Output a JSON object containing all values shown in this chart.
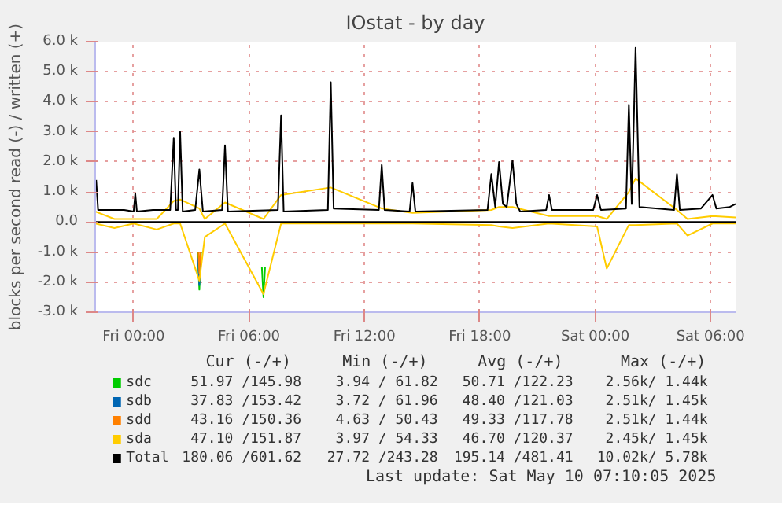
{
  "chart_data": {
    "type": "line",
    "title": "IOstat - by day",
    "ylabel": "blocks per second read (-) / written (+)",
    "xlim": [
      "2025-05-08T22:00",
      "2025-05-10T07:18"
    ],
    "ylim": [
      -3000,
      6000
    ],
    "xticks": [
      {
        "value": "2025-05-09T00:00",
        "label": "Fri 00:00"
      },
      {
        "value": "2025-05-09T06:00",
        "label": "Fri 06:00"
      },
      {
        "value": "2025-05-09T12:00",
        "label": "Fri 12:00"
      },
      {
        "value": "2025-05-09T18:00",
        "label": "Fri 18:00"
      },
      {
        "value": "2025-05-10T00:00",
        "label": "Sat 00:00"
      },
      {
        "value": "2025-05-10T06:00",
        "label": "Sat 06:00"
      }
    ],
    "yticks": [
      {
        "value": -3000,
        "label": "-3.0 k"
      },
      {
        "value": -2000,
        "label": "-2.0 k"
      },
      {
        "value": -1000,
        "label": "-1.0 k"
      },
      {
        "value": 0,
        "label": "0.0"
      },
      {
        "value": 1000,
        "label": "1.0 k"
      },
      {
        "value": 2000,
        "label": "2.0 k"
      },
      {
        "value": 3000,
        "label": "3.0 k"
      },
      {
        "value": 4000,
        "label": "4.0 k"
      },
      {
        "value": 5000,
        "label": "5.0 k"
      },
      {
        "value": 6000,
        "label": "6.0 k"
      }
    ],
    "grid": true,
    "legend": "bottom",
    "x": [
      "2025-05-08T22:00",
      "2025-05-08T23:00",
      "2025-05-09T00:00",
      "2025-05-09T01:12",
      "2025-05-09T02:05",
      "2025-05-09T02:25",
      "2025-05-09T03:25",
      "2025-05-09T03:42",
      "2025-05-09T04:45",
      "2025-05-09T06:45",
      "2025-05-09T07:40",
      "2025-05-09T10:15",
      "2025-05-09T12:54",
      "2025-05-09T14:30",
      "2025-05-09T18:36",
      "2025-05-09T19:00",
      "2025-05-09T19:42",
      "2025-05-09T21:36",
      "2025-05-10T00:06",
      "2025-05-10T00:36",
      "2025-05-10T01:45",
      "2025-05-10T02:06",
      "2025-05-10T04:15",
      "2025-05-10T04:48",
      "2025-05-10T06:06",
      "2025-05-10T07:18"
    ],
    "series": [
      {
        "name": "sdc",
        "color": "#00cc00",
        "x": [
          "2025-05-09T03:20",
          "2025-05-09T03:25",
          "2025-05-09T03:30",
          "2025-05-09T05:00",
          "2025-05-09T06:40",
          "2025-05-09T06:45",
          "2025-05-09T06:50"
        ],
        "values": [
          -1000,
          -2250,
          -1000,
          null,
          -1500,
          -2500,
          -1500
        ]
      },
      {
        "name": "sdb",
        "color": "#0066b3",
        "x": [
          "2025-05-09T03:21",
          "2025-05-09T03:25",
          "2025-05-09T03:29"
        ],
        "values": [
          -1200,
          -2100,
          -1200
        ]
      },
      {
        "name": "sdd",
        "color": "#ff8000",
        "x": [
          "2025-05-09T03:22",
          "2025-05-09T03:25",
          "2025-05-09T03:28"
        ],
        "values": [
          -1000,
          -1700,
          -1000
        ]
      },
      {
        "name": "sda",
        "color": "#ffcc00",
        "values": [
          350,
          100,
          100,
          100,
          700,
          750,
          450,
          100,
          650,
          100,
          900,
          1150,
          450,
          300,
          400,
          500,
          500,
          200,
          200,
          100,
          1000,
          1450,
          400,
          100,
          200,
          150
        ]
      },
      {
        "color": "#ffcc00",
        "values": [
          -50,
          -200,
          -50,
          -250,
          -50,
          -50,
          -1950,
          -500,
          -50,
          -2400,
          -50,
          -50,
          -50,
          -50,
          -100,
          -150,
          -200,
          -50,
          -150,
          -1550,
          -100,
          -100,
          -50,
          -450,
          -50,
          -50
        ]
      },
      {
        "name": "Total",
        "color": "#000000",
        "x": [
          "2025-05-08T22:03",
          "2025-05-08T22:09",
          "2025-05-08T23:30",
          "2025-05-09T00:00",
          "2025-05-09T00:05",
          "2025-05-09T00:10",
          "2025-05-09T01:00",
          "2025-05-09T01:54",
          "2025-05-09T02:05",
          "2025-05-09T02:12",
          "2025-05-09T02:18",
          "2025-05-09T02:25",
          "2025-05-09T02:33",
          "2025-05-09T03:12",
          "2025-05-09T03:25",
          "2025-05-09T03:36",
          "2025-05-09T04:36",
          "2025-05-09T04:45",
          "2025-05-09T04:54",
          "2025-05-09T07:30",
          "2025-05-09T07:40",
          "2025-05-09T07:48",
          "2025-05-09T10:06",
          "2025-05-09T10:15",
          "2025-05-09T10:24",
          "2025-05-09T12:45",
          "2025-05-09T12:54",
          "2025-05-09T13:03",
          "2025-05-09T14:21",
          "2025-05-09T14:30",
          "2025-05-09T14:39",
          "2025-05-09T18:24",
          "2025-05-09T18:36",
          "2025-05-09T18:48",
          "2025-05-09T19:00",
          "2025-05-09T19:12",
          "2025-05-09T19:24",
          "2025-05-09T19:42",
          "2025-05-09T19:54",
          "2025-05-09T20:06",
          "2025-05-09T21:27",
          "2025-05-09T21:36",
          "2025-05-09T21:45",
          "2025-05-09T23:54",
          "2025-05-10T00:06",
          "2025-05-10T00:18",
          "2025-05-10T01:36",
          "2025-05-10T01:45",
          "2025-05-10T01:54",
          "2025-05-10T02:06",
          "2025-05-10T02:18",
          "2025-05-10T04:06",
          "2025-05-10T04:15",
          "2025-05-10T04:24",
          "2025-05-10T05:30",
          "2025-05-10T06:06",
          "2025-05-10T06:18",
          "2025-05-10T07:00",
          "2025-05-10T07:18"
        ],
        "values": [
          1400,
          400,
          400,
          350,
          950,
          350,
          400,
          400,
          2800,
          400,
          400,
          3000,
          350,
          400,
          1750,
          350,
          400,
          2550,
          350,
          400,
          3550,
          350,
          400,
          4650,
          450,
          400,
          1900,
          400,
          350,
          1300,
          350,
          400,
          1600,
          500,
          2000,
          600,
          500,
          2050,
          600,
          350,
          400,
          900,
          400,
          400,
          900,
          400,
          450,
          3900,
          600,
          5800,
          500,
          400,
          1600,
          400,
          450,
          900,
          450,
          500,
          600
        ]
      }
    ],
    "annotations": [
      "Cur (-/+)",
      "Min (-/+)",
      "Avg (-/+)",
      "Max (-/+)",
      "51.97 /145.98",
      "3.94 / 61.82",
      "50.71 /122.23",
      "2.56k/  1.44k",
      "37.83 /153.42",
      "3.72 / 61.96",
      "48.40 /121.03",
      "2.51k/  1.45k",
      "43.16 /150.36",
      "4.63 / 50.43",
      "49.33 /117.78",
      "2.51k/  1.44k",
      "47.10 /151.87",
      "3.97 / 54.33",
      "46.70 /120.37",
      "2.45k/  1.45k",
      "180.06 /601.62",
      "27.72 /243.28",
      "195.14 /481.41",
      "10.02k/  5.78k",
      "Last update: Sat May 10 07:10:05 2025"
    ]
  }
}
